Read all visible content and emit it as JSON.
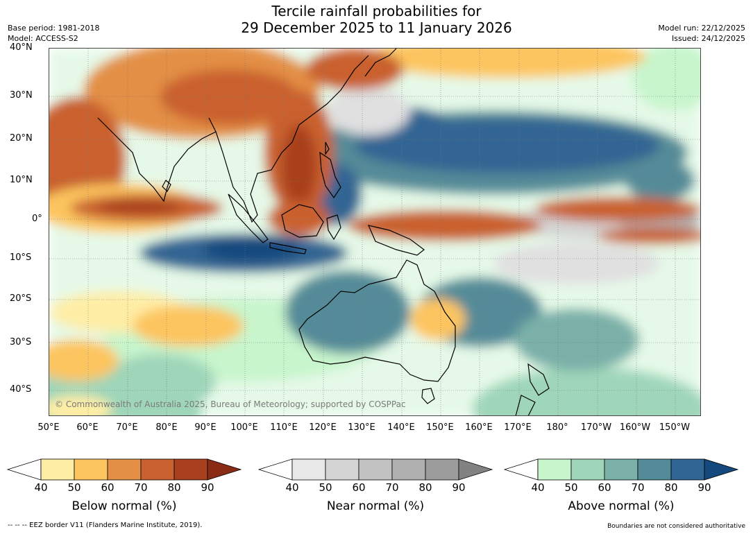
{
  "title": {
    "line1": "Tercile rainfall probabilities for",
    "line2": "29 December 2025 to 11 January 2026"
  },
  "meta": {
    "base_period": "Base period: 1981-2018",
    "model": "Model: ACCESS-S2",
    "model_run": "Model run: 22/12/2025",
    "issued": "Issued: 24/12/2025"
  },
  "map": {
    "copyright": "© Commonwealth of Australia 2025, Bureau of Meteorology; supported by COSPPac",
    "lat_labels": [
      "40°N",
      "30°N",
      "20°N",
      "10°N",
      "0°",
      "10°S",
      "20°S",
      "30°S",
      "40°S"
    ],
    "lon_labels": [
      "50°E",
      "60°E",
      "70°E",
      "80°E",
      "90°E",
      "100°E",
      "110°E",
      "120°E",
      "130°E",
      "140°E",
      "150°E",
      "160°E",
      "170°E",
      "180°",
      "170°W",
      "160°W",
      "150°W"
    ]
  },
  "colorbars": {
    "below": {
      "title": "Below normal (%)",
      "ticks": [
        "40",
        "50",
        "60",
        "70",
        "80",
        "90"
      ],
      "colors": [
        "#ffffff",
        "#feeda5",
        "#fdc55f",
        "#e38f45",
        "#c9602f",
        "#a8401f",
        "#8a2b16"
      ]
    },
    "near": {
      "title": "Near normal (%)",
      "ticks": [
        "40",
        "50",
        "60",
        "70",
        "80",
        "90"
      ],
      "colors": [
        "#ffffff",
        "#e8e8e8",
        "#d4d4d4",
        "#c2c2c2",
        "#b0b0b0",
        "#9c9c9c",
        "#828282"
      ]
    },
    "above": {
      "title": "Above normal (%)",
      "ticks": [
        "40",
        "50",
        "60",
        "70",
        "80",
        "90"
      ],
      "colors": [
        "#ffffff",
        "#c7f5cc",
        "#9fd6b9",
        "#7ab0a8",
        "#548b98",
        "#316593",
        "#15497e"
      ]
    }
  },
  "footer": {
    "eez_note": "--  --  -- EEZ border V11 (Flanders Marine Institute, 2019).",
    "disclaimer": "Boundaries are not considered authoritative"
  }
}
